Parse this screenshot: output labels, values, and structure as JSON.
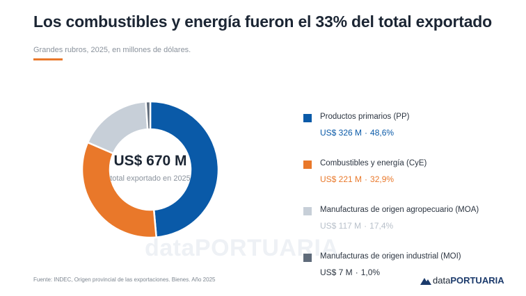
{
  "header": {
    "title": "Los combustibles y energía fueron el 33% del total exportado",
    "subtitle": "Grandes rubros, 2025, en millones de dólares."
  },
  "center": {
    "total": "US$ 670 M",
    "caption": "total exportado en 2025"
  },
  "watermark": {
    "part_a": "data",
    "part_b": "PORTUARIA"
  },
  "footer": {
    "source": "Fuente: INDEC, Origen provincial de las exportaciones. Bienes. Año 2025",
    "brand_a": "data",
    "brand_b": "PORTUARIA"
  },
  "legend": [
    {
      "label": "Productos primarios (PP)",
      "amount": "US$ 326 M",
      "separator": "·",
      "percent": "48,6%",
      "color": "#0a5aa8",
      "text_color": "#0a5aa8"
    },
    {
      "label": "Combustibles y energía (CyE)",
      "amount": "US$ 221 M",
      "separator": "·",
      "percent": "32,9%",
      "color": "#e9782a",
      "text_color": "#e9782a"
    },
    {
      "label": "Manufacturas de origen agropecuario (MOA)",
      "amount": "US$ 117 M",
      "separator": "·",
      "percent": "17,4%",
      "color": "#c7cfd8",
      "text_color": "#b8c0ca"
    },
    {
      "label": "Manufacturas de origen industrial (MOI)",
      "amount": "US$ 7 M",
      "separator": "·",
      "percent": "1,0%",
      "color": "#5f6b7a",
      "text_color": "#2b3440"
    }
  ],
  "chart_data": {
    "type": "pie",
    "title": "Los combustibles y energía fueron el 33% del total exportado",
    "categories": [
      "Productos primarios (PP)",
      "Combustibles y energía (CyE)",
      "Manufacturas de origen agropecuario (MOA)",
      "Manufacturas de origen industrial (MOI)"
    ],
    "values": [
      326,
      221,
      117,
      7
    ],
    "percentages": [
      48.6,
      32.9,
      17.4,
      1.0
    ],
    "unit": "millones de dólares",
    "total": 670,
    "legend_position": "right",
    "colors": [
      "#0a5aa8",
      "#e9782a",
      "#c7cfd8",
      "#5f6b7a"
    ]
  }
}
